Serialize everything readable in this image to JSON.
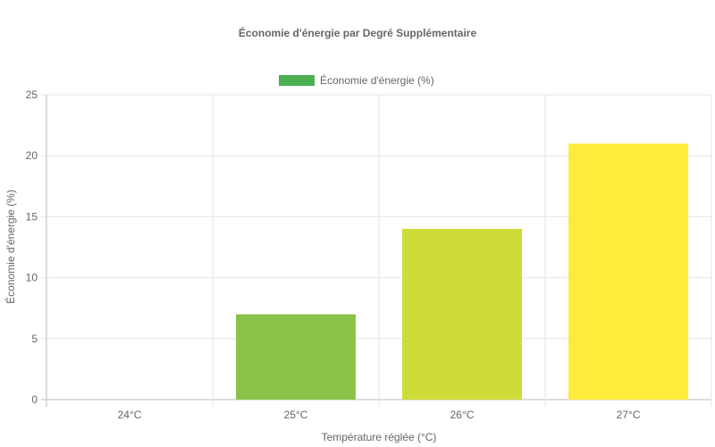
{
  "chart_data": {
    "type": "bar",
    "title": "Économie d'énergie par Degré Supplémentaire",
    "categories": [
      "24°C",
      "25°C",
      "26°C",
      "27°C"
    ],
    "series": [
      {
        "name": "Économie d'énergie (%)",
        "values": [
          0,
          7,
          14,
          21
        ],
        "colors": [
          "#4CAF50",
          "#8BC34A",
          "#CDDC39",
          "#FFEB3B"
        ]
      }
    ],
    "legend_color": "#4CAF50",
    "xlabel": "Température réglée (°C)",
    "ylabel": "Économie d'énergie (%)",
    "ylim": [
      0,
      25
    ],
    "yticks": [
      0,
      5,
      10,
      15,
      20,
      25
    ],
    "grid": true,
    "legend_position": "top-center"
  }
}
